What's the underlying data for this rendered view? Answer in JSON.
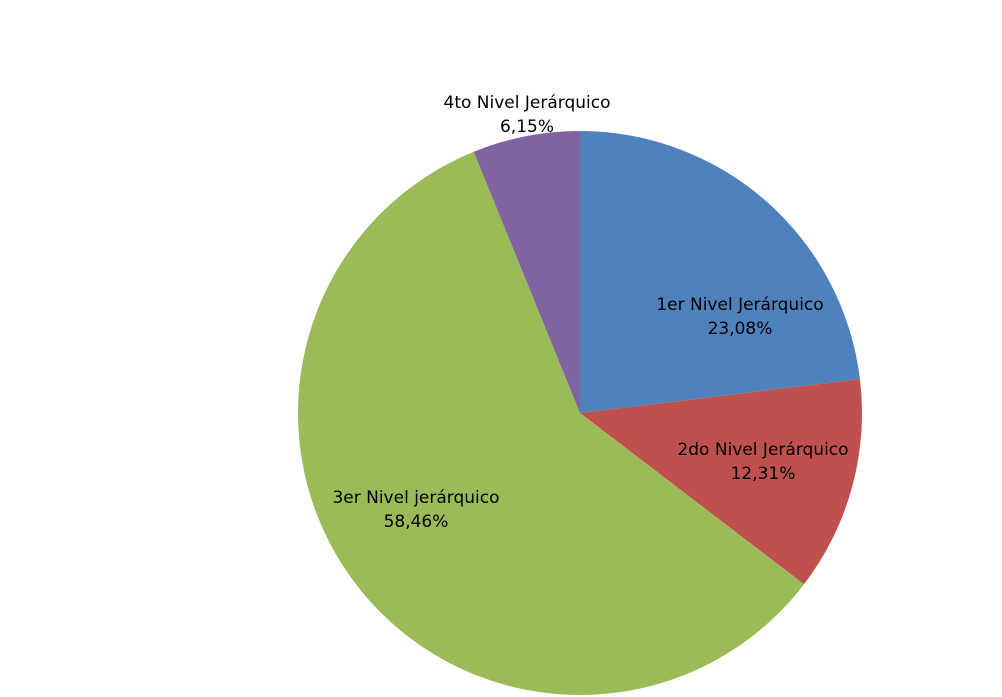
{
  "chart_data": {
    "type": "pie",
    "start_angle_deg": 0,
    "direction": "clockwise",
    "slices": [
      {
        "label": "1er Nivel Jerárquico",
        "value_text": "23,08%",
        "value": 23.08,
        "color": "#4F81BD"
      },
      {
        "label": "2do Nivel Jerárquico",
        "value_text": "12,31%",
        "value": 12.31,
        "color": "#C0504D"
      },
      {
        "label": "3er Nivel jerárquico",
        "value_text": "58,46%",
        "value": 58.46,
        "color": "#9BBB59"
      },
      {
        "label": "4to Nivel Jerárquico",
        "value_text": "6,15%",
        "value": 6.15,
        "color": "#8064A2"
      }
    ]
  }
}
